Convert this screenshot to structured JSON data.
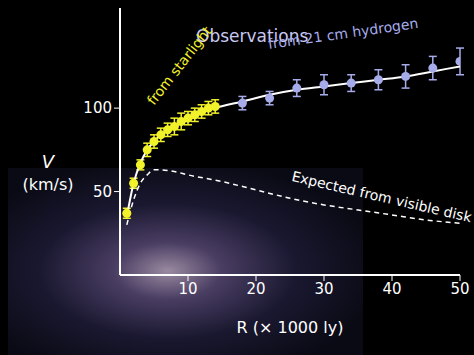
{
  "chart_data": {
    "type": "line",
    "title": "Observations",
    "x_label": "R (× 1000 ly)",
    "y_label": "V (km/s)",
    "xlim": [
      0,
      50
    ],
    "xticks": [
      10,
      20,
      30,
      40,
      50
    ],
    "ylim": [
      0,
      160
    ],
    "yticks": [
      50,
      100
    ],
    "grid": false,
    "series": [
      {
        "name": "from starlight",
        "type": "scatter",
        "marker": "circle",
        "color": "#f2f22a",
        "x": [
          1,
          2,
          3,
          4,
          5,
          6,
          7,
          8,
          9,
          10,
          11,
          12,
          13,
          14
        ],
        "values": [
          37,
          55,
          66,
          75,
          80,
          84,
          87,
          89,
          92,
          94,
          96,
          98,
          100,
          101
        ],
        "errors": [
          3,
          3,
          3,
          4,
          4,
          4,
          4,
          5,
          5,
          4,
          4,
          4,
          4,
          4
        ]
      },
      {
        "name": "from 21 cm hydrogen",
        "type": "scatter",
        "marker": "circle",
        "color": "#a6acea",
        "x": [
          18,
          22,
          26,
          30,
          34,
          38,
          42,
          46,
          50
        ],
        "values": [
          103,
          106,
          112,
          114,
          115,
          117,
          119,
          124,
          128
        ],
        "errors": [
          4,
          4,
          5,
          6,
          5,
          6,
          7,
          7,
          8
        ]
      },
      {
        "type": "line",
        "marker": "none",
        "line_style": "solid",
        "color": "#ffffff",
        "x": [
          1,
          2,
          3,
          4,
          5,
          6,
          8,
          10,
          12,
          14,
          18,
          22,
          26,
          30,
          34,
          38,
          42,
          46,
          50
        ],
        "values": [
          35,
          55,
          67,
          75,
          80,
          84,
          89,
          93,
          97,
          100,
          104,
          108,
          111,
          113,
          115,
          117,
          119,
          122,
          125
        ]
      },
      {
        "name": "Expected from visible disk",
        "type": "line",
        "marker": "none",
        "line_style": "dashed",
        "color": "#ffffff",
        "x": [
          1,
          2,
          3,
          4,
          5,
          6,
          8,
          10,
          15,
          20,
          25,
          30,
          35,
          40,
          45,
          50
        ],
        "values": [
          30,
          45,
          55,
          60,
          63,
          63,
          62,
          60,
          56,
          51,
          46,
          42,
          39,
          36,
          33,
          31
        ]
      }
    ]
  }
}
